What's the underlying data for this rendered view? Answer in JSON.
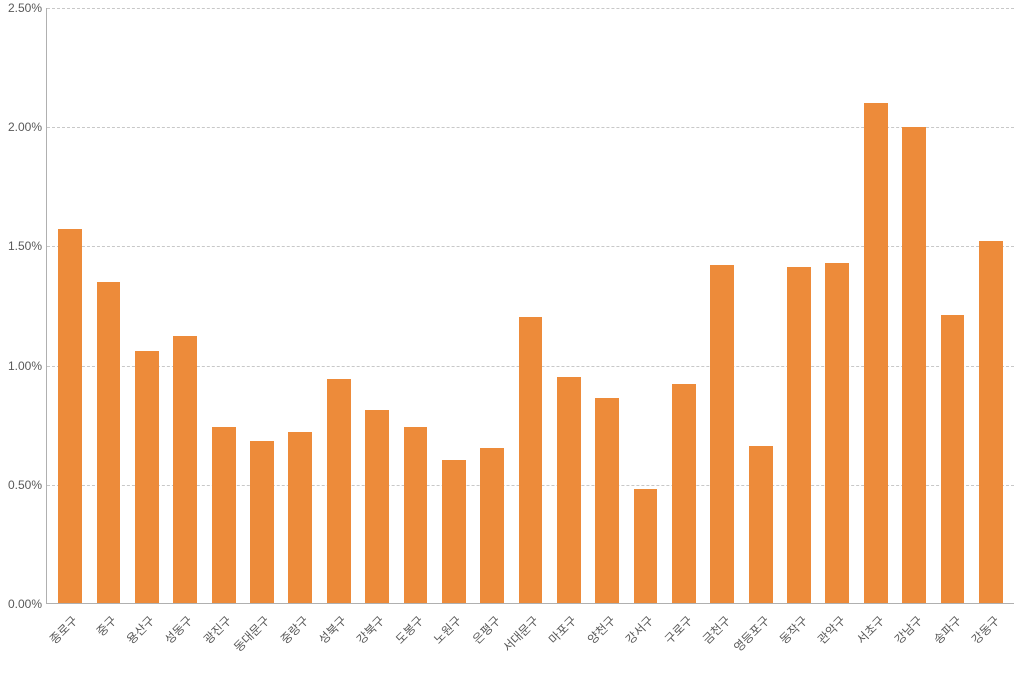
{
  "chart": {
    "type": "bar",
    "background_color": "#ffffff",
    "bar_color": "#ed8b3a",
    "grid_color": "#c8c8c8",
    "axis_color": "#b0b0b0",
    "text_color": "#595959",
    "label_fontsize": 12,
    "bar_width": 0.62,
    "y_axis": {
      "min": 0.0,
      "max": 2.5,
      "tick_step": 0.5,
      "format": "percent_2dp",
      "ticks": [
        {
          "value": 0.0,
          "label": "0.00%"
        },
        {
          "value": 0.5,
          "label": "0.50%"
        },
        {
          "value": 1.0,
          "label": "1.00%"
        },
        {
          "value": 1.5,
          "label": "1.50%"
        },
        {
          "value": 2.0,
          "label": "2.00%"
        },
        {
          "value": 2.5,
          "label": "2.50%"
        }
      ]
    },
    "categories": [
      "종로구",
      "중구",
      "용산구",
      "성동구",
      "광진구",
      "동대문구",
      "중랑구",
      "성북구",
      "강북구",
      "도봉구",
      "노원구",
      "은평구",
      "서대문구",
      "마포구",
      "양천구",
      "강서구",
      "구로구",
      "금천구",
      "영등포구",
      "동작구",
      "관악구",
      "서초구",
      "강남구",
      "송파구",
      "강동구"
    ],
    "values": [
      1.57,
      1.35,
      1.06,
      1.12,
      0.74,
      0.68,
      0.72,
      0.94,
      0.81,
      0.74,
      0.6,
      0.65,
      1.2,
      0.95,
      0.86,
      0.48,
      0.92,
      1.42,
      0.66,
      1.41,
      1.43,
      2.1,
      2.0,
      1.21,
      1.52
    ]
  }
}
